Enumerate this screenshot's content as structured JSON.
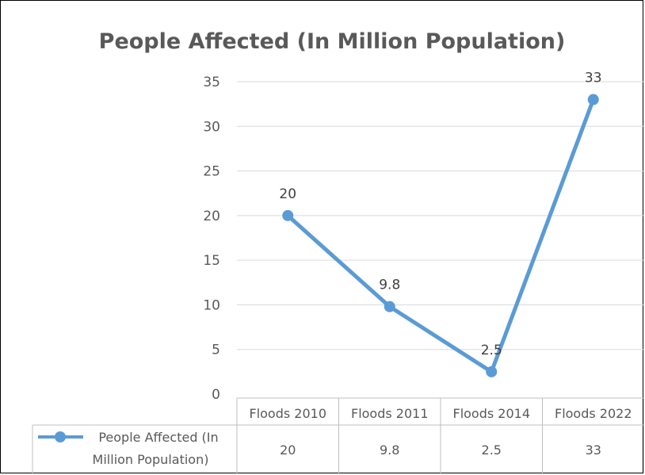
{
  "chart_data": {
    "type": "line",
    "title": "People Affected (In Million Population)",
    "categories": [
      "Floods 2010",
      "Floods 2011",
      "Floods 2014",
      "Floods 2022"
    ],
    "series": [
      {
        "name": "People Affected (In Million Population)",
        "values": [
          20,
          9.8,
          2.5,
          33
        ]
      }
    ],
    "data_labels": [
      "20",
      "9.8",
      "2.5",
      "33"
    ],
    "y_ticks": [
      "0",
      "5",
      "10",
      "15",
      "20",
      "25",
      "30",
      "35"
    ],
    "ylim": [
      0,
      35
    ],
    "grid": true,
    "legend": "data-table",
    "data_table": {
      "legend_label_line1": "People Affected (In",
      "legend_label_line2": "Million Population)",
      "values": [
        "20",
        "9.8",
        "2.5",
        "33"
      ]
    },
    "colors": {
      "series": "#5b9bd5",
      "title": "#595959",
      "grid": "#d9d9d9"
    }
  }
}
